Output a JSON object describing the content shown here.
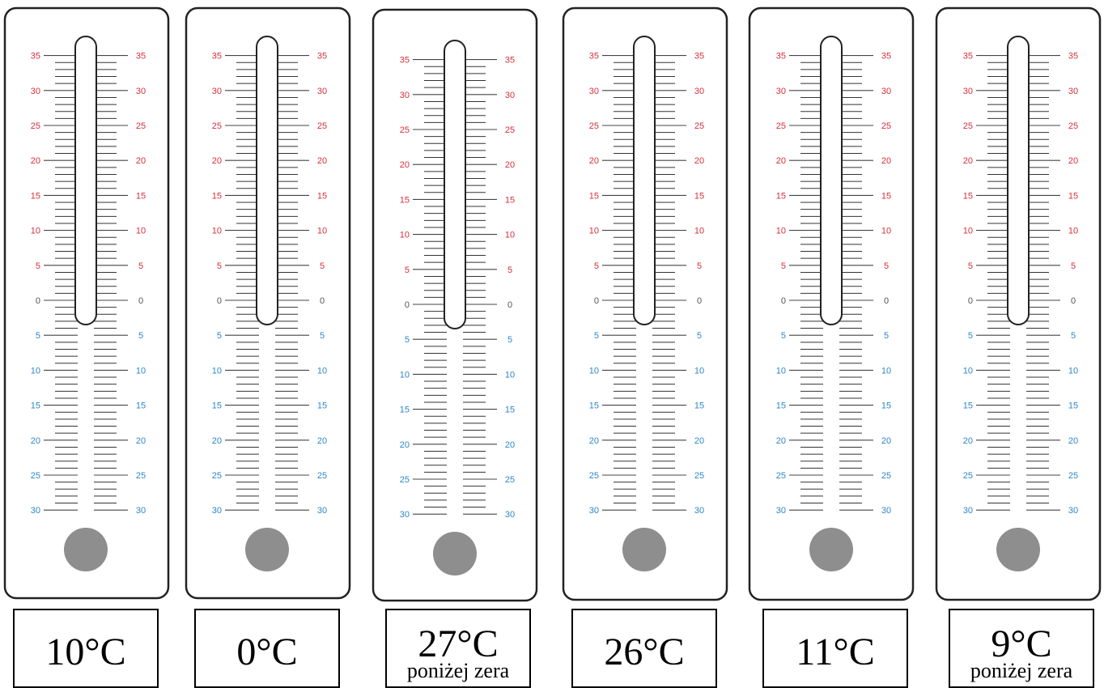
{
  "scale": {
    "top_labels": [
      "35",
      "30",
      "25",
      "20",
      "15",
      "10",
      "5"
    ],
    "zero_label": "0",
    "bottom_labels": [
      "5",
      "10",
      "15",
      "20",
      "25",
      "30"
    ],
    "colors": {
      "above_zero": "#d7303a",
      "zero": "#555555",
      "below_zero": "#2f86c8",
      "bulb": "#8e8e8e"
    }
  },
  "thermometers": [
    {
      "value_label": "10°C",
      "note": ""
    },
    {
      "value_label": "0°C",
      "note": ""
    },
    {
      "value_label": "27°C",
      "note": "poniżej zera"
    },
    {
      "value_label": "26°C",
      "note": ""
    },
    {
      "value_label": "11°C",
      "note": ""
    },
    {
      "value_label": "9°C",
      "note": "poniżej zera"
    }
  ]
}
